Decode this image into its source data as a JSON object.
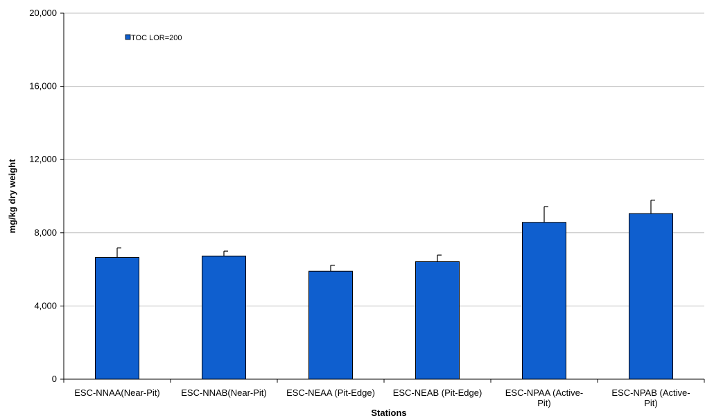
{
  "chart_data": {
    "type": "bar",
    "categories": [
      [
        "ESC-NNAA(Near-Pit)"
      ],
      [
        "ESC-NNAB(Near-Pit)"
      ],
      [
        "ESC-NEAA (Pit-Edge)"
      ],
      [
        "ESC-NEAB (Pit-Edge)"
      ],
      [
        "ESC-NPAA (Active-",
        "Pit)"
      ],
      [
        "ESC-NPAB (Active-",
        "Pit)"
      ]
    ],
    "series": [
      {
        "name": "TOC LOR=200",
        "values": [
          6650,
          6730,
          5900,
          6420,
          8570,
          9050
        ],
        "error_plus": [
          520,
          270,
          330,
          360,
          860,
          730
        ],
        "color": "#0f5fcf"
      }
    ],
    "xlabel": "Stations",
    "ylabel": "mg/kg dry weight",
    "ylim": [
      0,
      20000
    ],
    "yticks": [
      0,
      4000,
      8000,
      12000,
      16000,
      20000
    ],
    "ytick_labels": [
      "0",
      "4,000",
      "8,000",
      "12,000",
      "16,000",
      "20,000"
    ],
    "grid": true,
    "legend_position": "top-left"
  }
}
